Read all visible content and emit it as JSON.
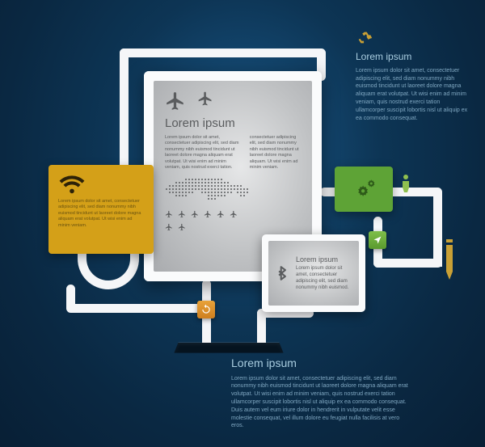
{
  "colors": {
    "bg_center": "#1a5a8c",
    "bg_edge": "#081f35",
    "pipe": "#f5f6f8",
    "tablet": "#fafbfc",
    "screen_a": "#e6e7e8",
    "screen_b": "#a9abae",
    "yellow": "#d4a018",
    "green": "#5ea336",
    "chip_orange": "#cf7f1f",
    "chip_green": "#5a9a2e",
    "blurb_head": "#a9cde0",
    "blurb_body": "#80a8c2",
    "accent_icon": "#c9a035"
  },
  "top_blurb": {
    "title": "Lorem ipsum",
    "body": "Lorem ipsum dolor sit amet, consectetuer adipiscing elit, sed diam nonummy nibh euismod tincidunt ut laoreet dolore magna aliquam erat volutpat. Ut wisi enim ad minim veniam, quis nostrud exerci tation ullamcorper suscipit lobortis nisl ut aliquip ex ea commodo consequat."
  },
  "bottom_blurb": {
    "title": "Lorem ipsum",
    "body": "Lorem ipsum dolor sit amet, consectetuer adipiscing elit, sed diam nonummy nibh euismod tincidunt ut laoreet dolore magna aliquam erat volutpat. Ut wisi enim ad minim veniam, quis nostrud exerci tation ullamcorper suscipit lobortis nisl ut aliquip ex ea commodo consequat. Duis autem vel eum iriure dolor in hendrerit in vulputate velit esse molestie consequat, vel illum dolore eu feugiat nulla facilisis at vero eros."
  },
  "center": {
    "title": "Lorem ipsum",
    "col1": "Lorem ipsum dolor sit amet, consectetuer adipiscing elit, sed diam nonummy nibh euismod tincidunt ut laoreet dolore magna aliquam erat volutpat. Ut wisi enim ad minim veniam, quis nostrud exerci tation.",
    "col2": "consectetuer adipiscing elit, sed diam nonummy nibh euismod tincidunt ut laoreet dolore magna aliquam. Ut wisi enim ad minim veniam."
  },
  "yellow_card": {
    "body": "Lorem ipsum dolor sit amet, consectetuer adipiscing elit, sed diam nonummy nibh euismod tincidunt ut laoreet dolore magna aliquam erat volutpat. Ut wisi enim ad minim veniam."
  },
  "mini": {
    "title": "Lorem ipsum",
    "body": "Lorem ipsum dolor sit amet, consectetuer adipiscing elit, sed diam nonummy nibh euismod."
  },
  "icons": {
    "recycle": "recycle-icon",
    "person": "person-icon",
    "pencil": "pencil-icon",
    "wifi": "wifi-icon",
    "gear": "gear-icon",
    "plane": "airplane-icon",
    "bluetooth": "bluetooth-icon",
    "refresh": "refresh-icon",
    "location": "location-arrow-icon"
  }
}
